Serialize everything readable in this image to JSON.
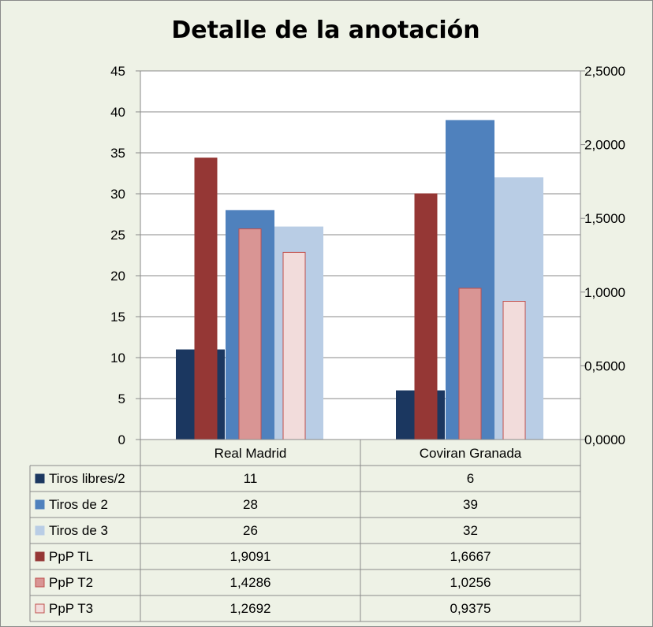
{
  "chart_data": {
    "type": "bar",
    "title": "Detalle de la anotación",
    "categories": [
      "Real Madrid",
      "Coviran Granada"
    ],
    "y_left": {
      "min": 0,
      "max": 45,
      "step": 5,
      "ticks": [
        "0",
        "5",
        "10",
        "15",
        "20",
        "25",
        "30",
        "35",
        "40",
        "45"
      ]
    },
    "y_right": {
      "min": 0,
      "max": 2.5,
      "step": 0.5,
      "ticks": [
        "0,0000",
        "0,5000",
        "1,0000",
        "1,5000",
        "2,0000",
        "2,5000"
      ]
    },
    "grid": true,
    "legend": "data-table",
    "series": [
      {
        "name": "Tiros libres/2",
        "axis": "left",
        "values": [
          11,
          6
        ],
        "labels": [
          "11",
          "6"
        ],
        "color": "#1b3760"
      },
      {
        "name": "Tiros de 2",
        "axis": "left",
        "values": [
          28,
          39
        ],
        "labels": [
          "28",
          "39"
        ],
        "color": "#4f81bd"
      },
      {
        "name": "Tiros de 3",
        "axis": "left",
        "values": [
          26,
          32
        ],
        "labels": [
          "26",
          "32"
        ],
        "color": "#b9cde5"
      },
      {
        "name": "PpP TL",
        "axis": "right",
        "values": [
          1.9091,
          1.6667
        ],
        "labels": [
          "1,9091",
          "1,6667"
        ],
        "color": "#953735"
      },
      {
        "name": "PpP T2",
        "axis": "right",
        "values": [
          1.4286,
          1.0256
        ],
        "labels": [
          "1,4286",
          "1,0256"
        ],
        "color": "#d99594"
      },
      {
        "name": "PpP T3",
        "axis": "right",
        "values": [
          1.2692,
          0.9375
        ],
        "labels": [
          "1,2692",
          "0,9375"
        ],
        "color": "#f2dcdb"
      }
    ]
  }
}
